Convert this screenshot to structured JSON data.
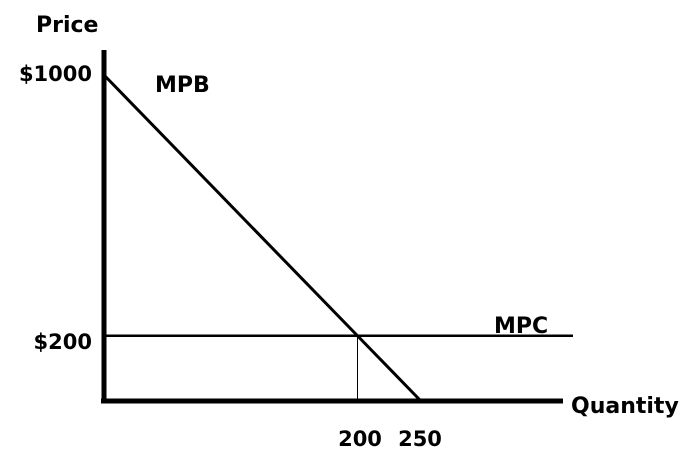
{
  "chart_data": {
    "type": "line",
    "title": "",
    "xlabel": "Quantity",
    "ylabel": "Price",
    "xlim": [
      0,
      370
    ],
    "ylim": [
      0,
      1000
    ],
    "x_ticks": [
      {
        "value": 200,
        "label": "200"
      },
      {
        "value": 250,
        "label": "250"
      }
    ],
    "y_ticks": [
      {
        "value": 200,
        "label": "$200"
      },
      {
        "value": 1000,
        "label": "$1000"
      }
    ],
    "series": [
      {
        "name": "MPB",
        "points": [
          [
            0,
            1000
          ],
          [
            250,
            0
          ]
        ],
        "color": "#000000"
      },
      {
        "name": "MPC",
        "points": [
          [
            0,
            200
          ],
          [
            370,
            200
          ]
        ],
        "color": "#000000"
      }
    ],
    "reference_lines": [
      {
        "type": "vertical",
        "x": 200,
        "y_from": 0,
        "y_to": 200
      }
    ],
    "grid": false,
    "legend": "none"
  }
}
